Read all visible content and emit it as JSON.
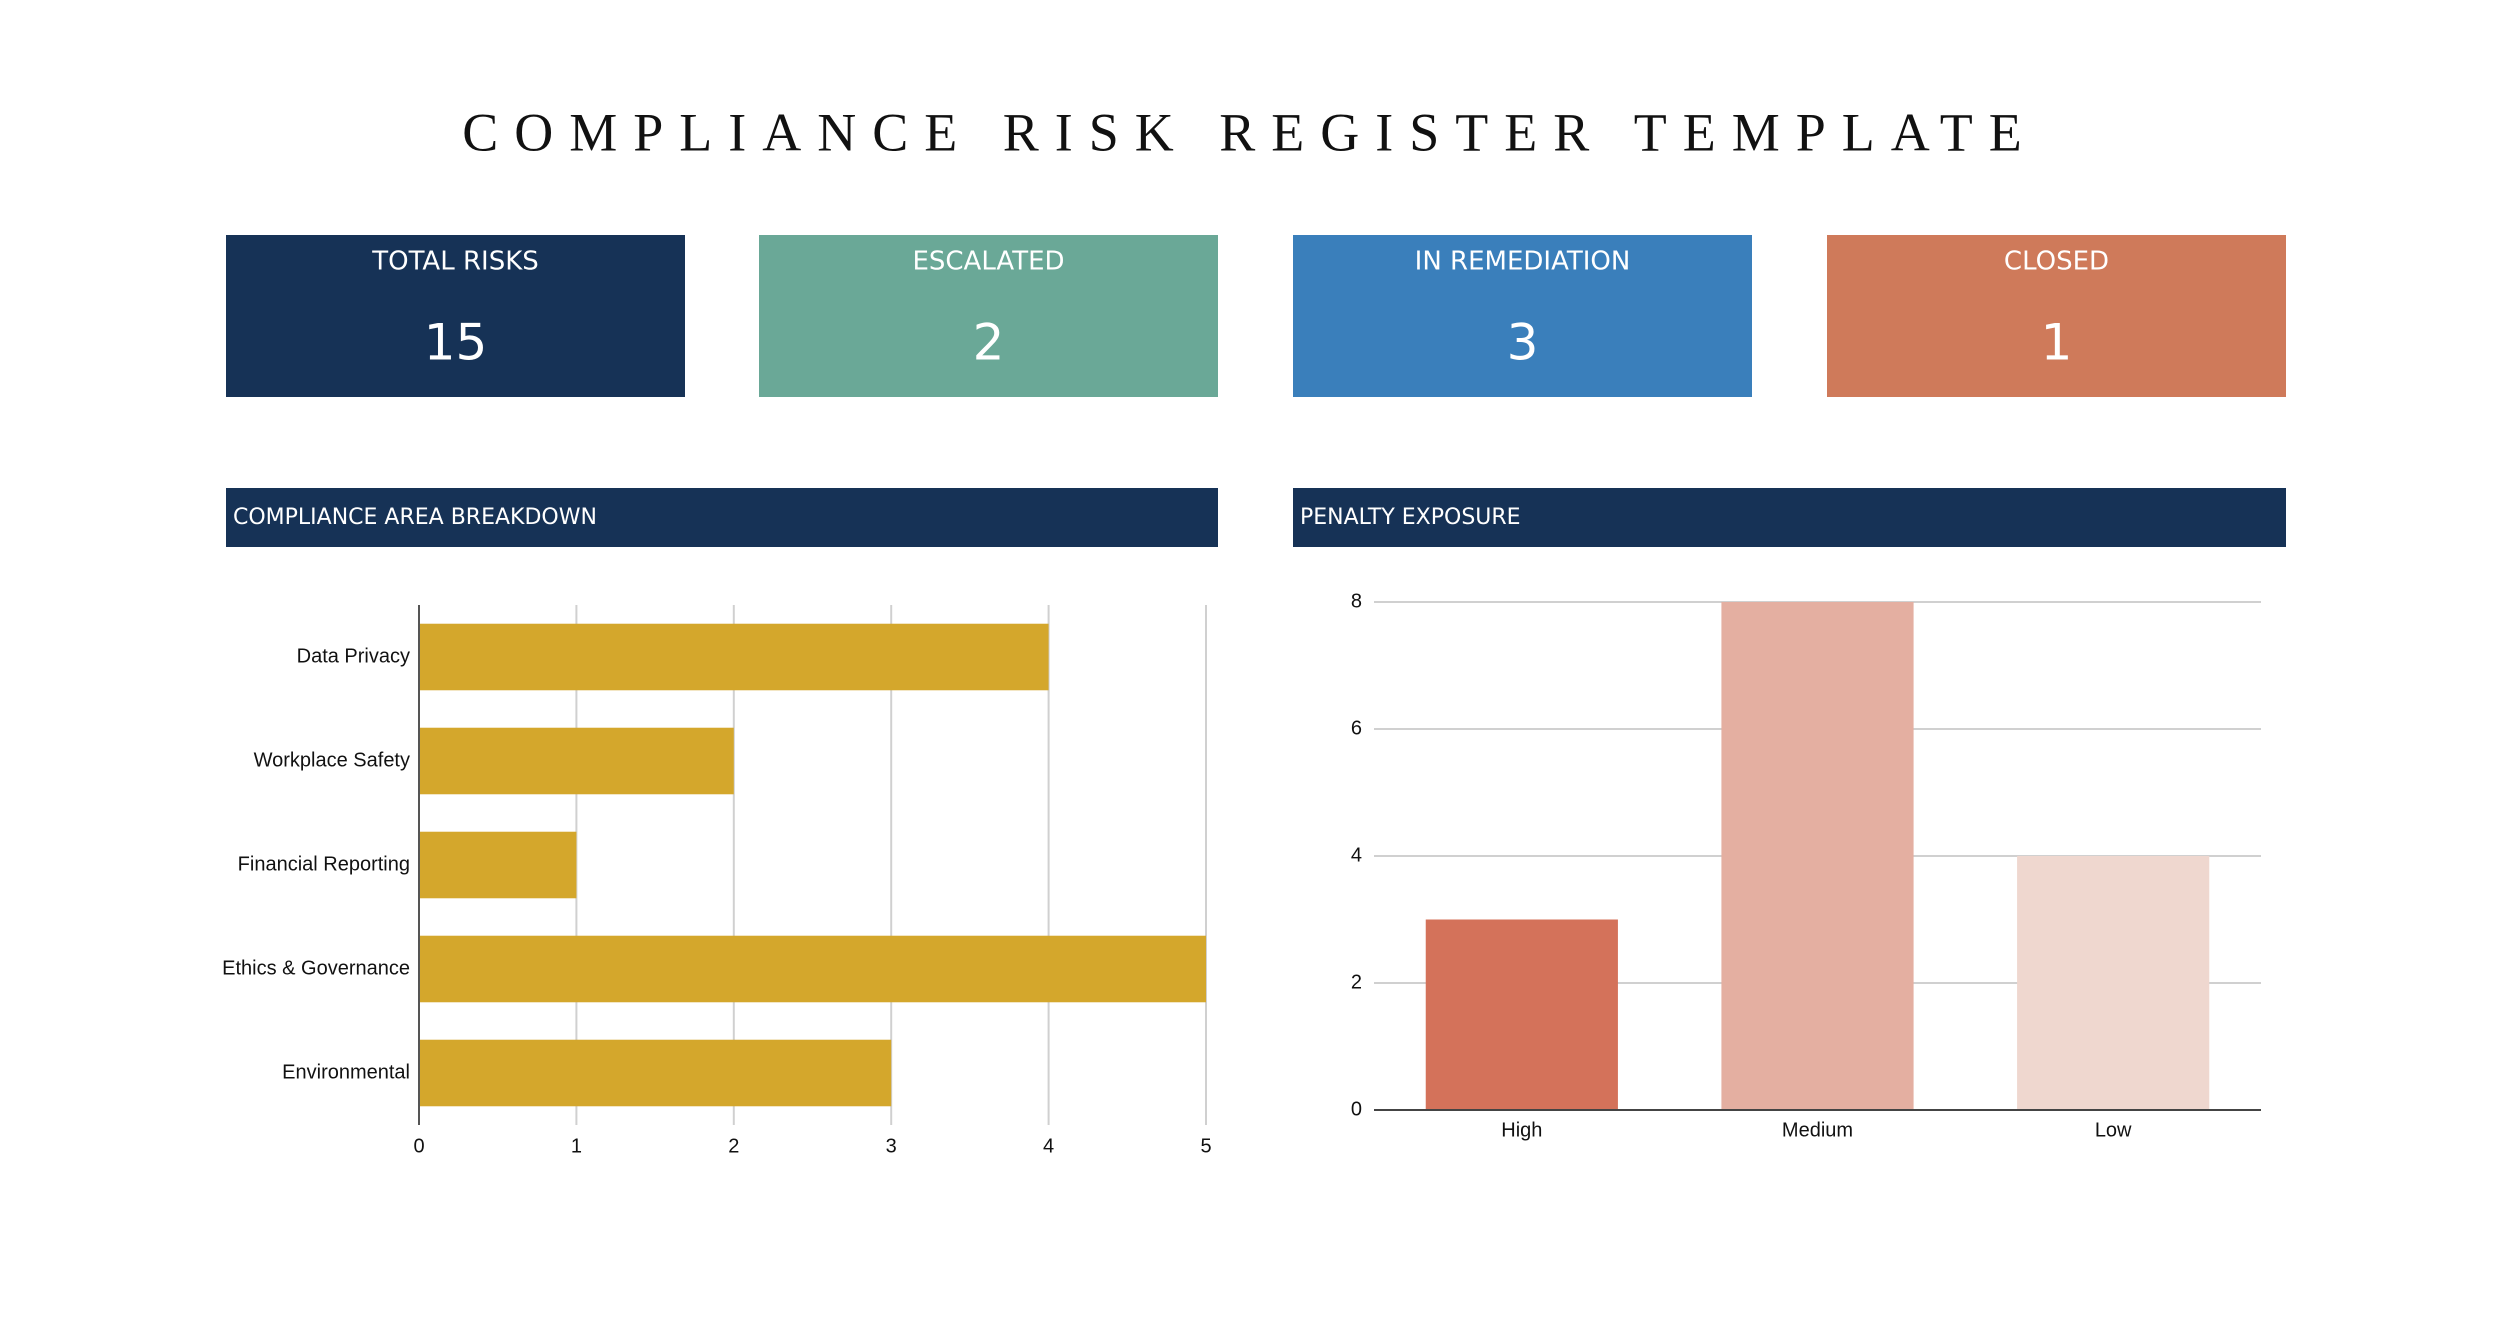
{
  "title": "COMPLIANCE RISK REGISTER TEMPLATE",
  "kpis": [
    {
      "label": "TOTAL RISKS",
      "value": 15,
      "color": "#163256"
    },
    {
      "label": "ESCALATED",
      "value": 2,
      "color": "#6aa897"
    },
    {
      "label": "IN REMEDIATION",
      "value": 3,
      "color": "#3a7fbb"
    },
    {
      "label": "CLOSED",
      "value": 1,
      "color": "#cf7a5a"
    }
  ],
  "chart_data": [
    {
      "type": "bar",
      "orientation": "horizontal",
      "title": "COMPLIANCE AREA BREAKDOWN",
      "categories": [
        "Data Privacy",
        "Workplace Safety",
        "Financial Reporting",
        "Ethics & Governance",
        "Environmental"
      ],
      "values": [
        4,
        2,
        1,
        5,
        3
      ],
      "color": "#d4a72c",
      "xlim": [
        0,
        5
      ],
      "xticks": [
        0,
        1,
        2,
        3,
        4,
        5
      ],
      "grid": true
    },
    {
      "type": "bar",
      "orientation": "vertical",
      "title": "PENALTY EXPOSURE",
      "categories": [
        "High",
        "Medium",
        "Low"
      ],
      "values": [
        3,
        8,
        4
      ],
      "colors": [
        "#d4725a",
        "#e4afa1",
        "#efd7cf"
      ],
      "ylim": [
        0,
        8
      ],
      "yticks": [
        0,
        2,
        4,
        6,
        8
      ],
      "grid": true
    }
  ]
}
